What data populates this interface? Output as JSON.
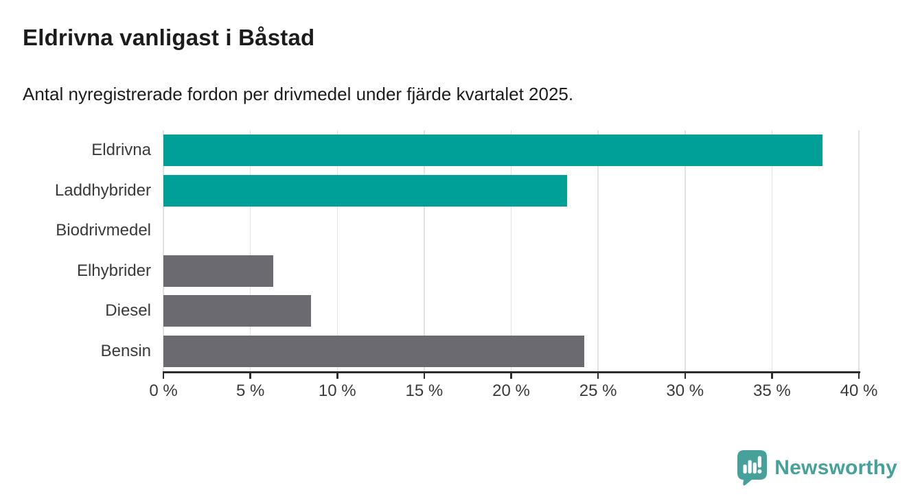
{
  "header": {
    "title": "Eldrivna vanligast i Båstad",
    "subtitle": "Antal nyregistrerade fordon per drivmedel under fjärde kvartalet 2025."
  },
  "chart_data": {
    "type": "bar",
    "orientation": "horizontal",
    "title": "Eldrivna vanligast i Båstad",
    "subtitle": "Antal nyregistrerade fordon per drivmedel under fjärde kvartalet 2025.",
    "categories": [
      "Eldrivna",
      "Laddhybrider",
      "Biodrivmedel",
      "Elhybrider",
      "Diesel",
      "Bensin"
    ],
    "values": [
      37.9,
      23.2,
      0,
      6.3,
      8.5,
      24.2
    ],
    "unit": "%",
    "bar_colors": [
      "#00a096",
      "#00a096",
      "#6b6a70",
      "#6b6a70",
      "#6b6a70",
      "#6b6a70"
    ],
    "highlight_color": "#00a096",
    "default_color": "#6b6a70",
    "xlim": [
      0,
      40
    ],
    "x_ticks": [
      0,
      5,
      10,
      15,
      20,
      25,
      30,
      35,
      40
    ],
    "x_tick_labels": [
      "0 %",
      "5 %",
      "10 %",
      "15 %",
      "20 %",
      "25 %",
      "30 %",
      "35 %",
      "40 %"
    ],
    "grid": true,
    "gridline_color": "#e2e2e2",
    "axis_color": "#2d2d2d",
    "legend": "none"
  },
  "footer": {
    "brand": "Newsworthy",
    "brand_color": "#45a19a",
    "logo_icon": "newsworthy-speech-bubble-chart-icon"
  }
}
